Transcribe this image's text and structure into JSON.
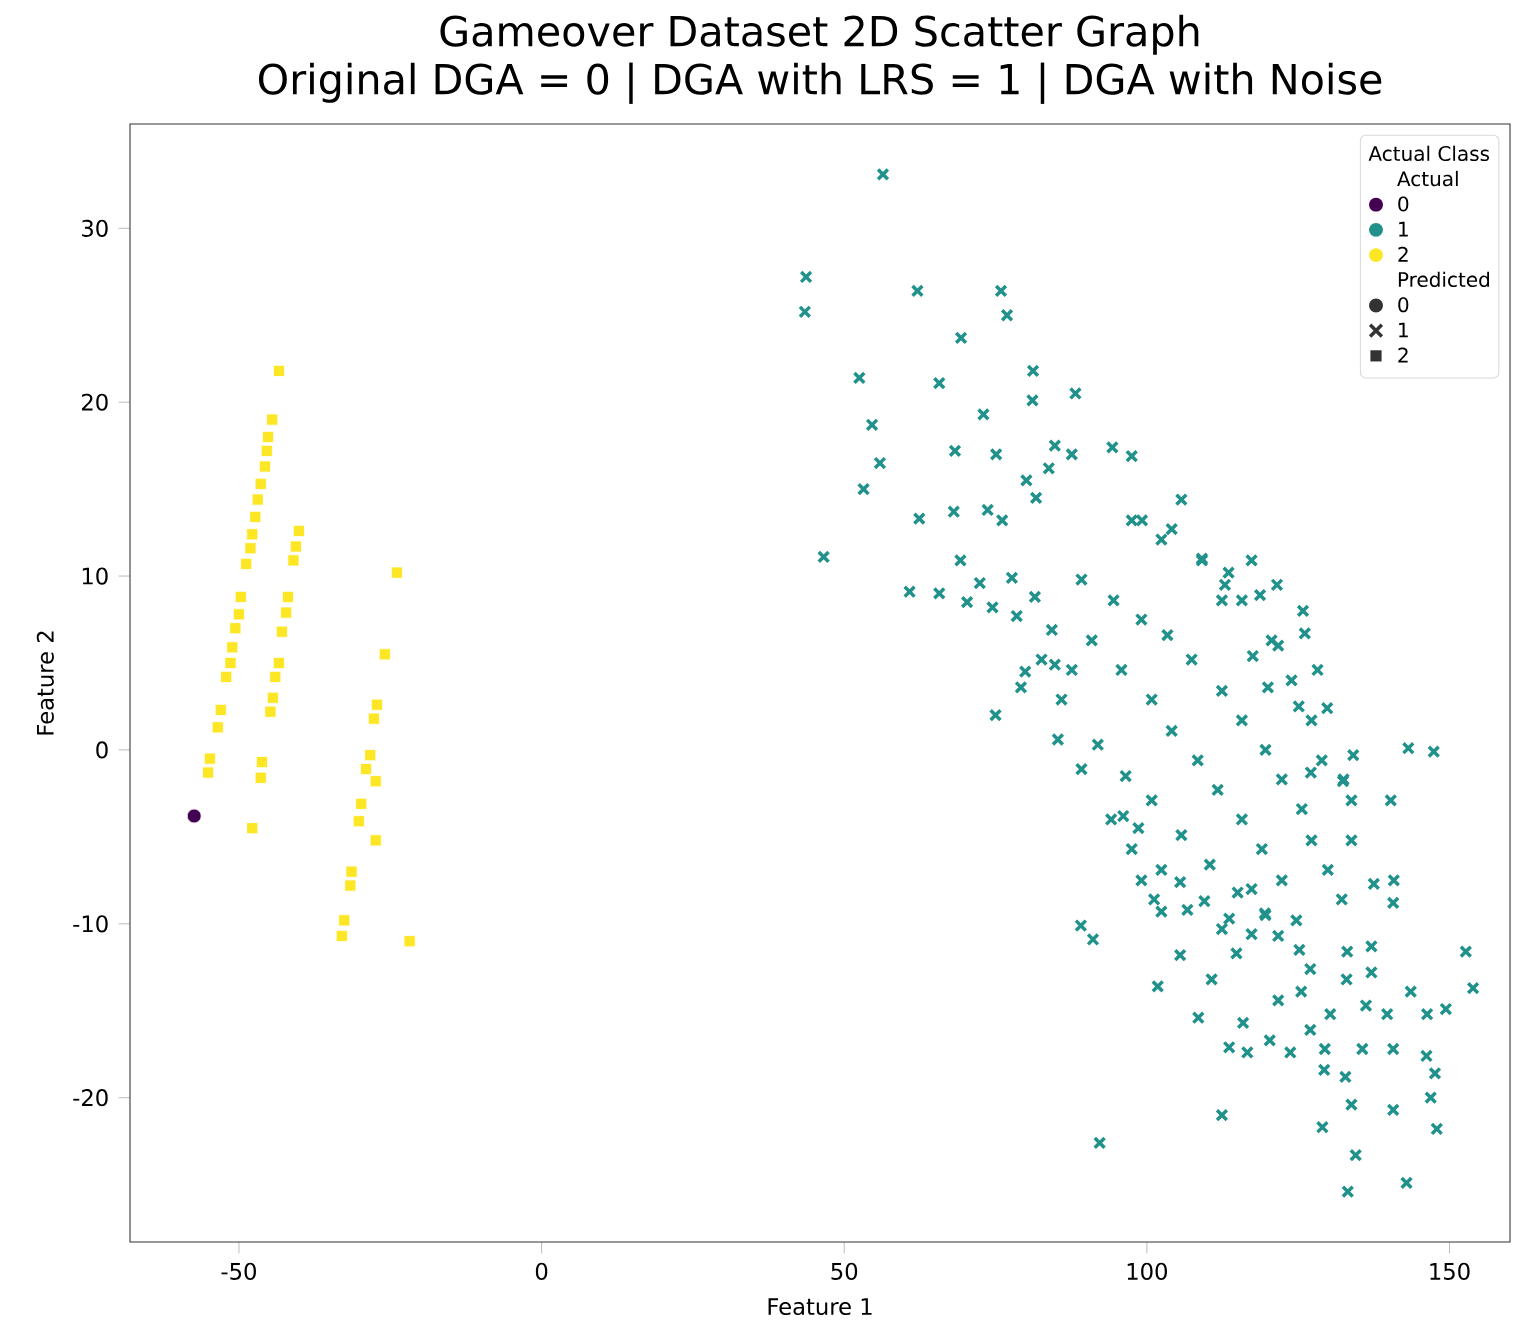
{
  "chart_data": {
    "type": "scatter",
    "title": "Gameover Dataset 2D Scatter Graph",
    "subtitle": "Original DGA = 0 | DGA with LRS = 1 | DGA with Noise",
    "xlabel": "Feature 1",
    "ylabel": "Feature 2",
    "legend_title": "Actual Class",
    "annotations": [
      "Actual",
      "Predicted",
      "0",
      "1",
      "2"
    ],
    "legend": "top right",
    "xlim": [
      -68,
      160
    ],
    "ylim": [
      -28.3,
      36
    ],
    "xticks": [
      -50,
      0,
      50,
      100,
      150
    ],
    "yticks": [
      -20,
      -10,
      0,
      10,
      20,
      30
    ],
    "series": [
      {
        "name": "0",
        "color": "#440154",
        "marker": "circle",
        "x": [
          -57.4
        ],
        "values": [
          -3.8
        ]
      },
      {
        "name": "1",
        "color": "#21918c",
        "marker": "cross",
        "x": [
          56.4,
          43.7,
          43.5,
          62.1,
          75.9,
          76.9,
          69.3,
          52.5,
          65.7,
          81.2,
          81.1,
          88.2,
          54.6,
          73.0,
          55.9,
          68.3,
          75.1,
          53.2,
          62.4,
          68.1,
          73.7,
          76.1,
          46.6,
          69.2,
          65.7,
          70.3,
          74.5,
          72.4,
          77.7,
          80.1,
          83.8,
          84.8,
          87.6,
          94.3,
          97.5,
          81.7,
          78.5,
          81.5,
          84.8,
          79.9,
          79.2,
          60.8,
          75.0,
          121.5,
          125.8,
          126.1,
          128.2,
          121.7,
          118.7,
          109.1,
          104.1,
          99.2,
          129.8,
          134.1,
          143.2,
          147.4,
          140.3,
          133.8,
          132.5,
          120.0,
          117.5,
          125.1,
          113.5,
          112.9,
          152.7,
          153.9,
          89.1,
          91.1,
          92.2,
          101.8,
          105.5,
          110.7,
          108.5,
          112.4,
          113.6,
          116.6,
          115.9,
          120.3,
          123.7,
          121.7,
          125.5,
          127.0,
          129.4,
          129.3,
          130.3,
          132.8,
          133.8,
          129.0,
          134.5,
          133.2,
          135.6,
          136.2,
          139.7,
          140.7,
          140.7,
          142.9,
          143.6,
          146.3,
          149.4,
          146.2,
          147.6,
          146.9,
          147.9,
          137.1,
          137.1,
          140.7,
          140.8,
          137.5,
          133.0,
          133.1,
          127.0,
          125.2,
          124.7,
          114.8,
          113.6,
          109.5,
          105.5,
          101.2,
          102.4,
          117.3,
          121.7,
          119.5,
          102.4,
          96.1,
          98.6,
          132.4,
          127.1,
          89.2,
          94.5,
          99.1,
          103.4,
          107.4,
          112.4,
          115.7,
          119.6,
          122.3,
          125.6,
          127.2,
          129.9,
          90.9,
          95.8,
          100.8,
          104.1,
          108.4,
          111.7,
          115.7,
          119.0,
          122.3,
          85.9,
          91.9,
          96.5,
          100.8,
          105.7,
          110.4,
          115.0,
          119.6,
          102.4,
          109.1,
          115.7,
          120.6,
          123.9,
          127.2,
          128.9,
          84.3,
          87.6,
          82.6,
          85.3,
          89.2,
          94.1,
          97.5,
          99.1,
          106.7,
          112.4,
          117.3,
          132.2,
          133.8,
          112.4,
          117.3,
          97.5,
          105.7
        ],
        "values": [
          33.1,
          27.2,
          25.2,
          26.4,
          26.4,
          25.0,
          23.7,
          21.4,
          21.1,
          21.8,
          20.1,
          20.5,
          18.7,
          19.3,
          16.5,
          17.2,
          17.0,
          15.0,
          13.3,
          13.7,
          13.8,
          13.2,
          11.1,
          10.9,
          9.0,
          8.5,
          8.2,
          9.6,
          9.9,
          15.5,
          16.2,
          17.5,
          17.0,
          17.4,
          16.9,
          14.5,
          7.7,
          8.8,
          4.9,
          4.5,
          3.6,
          9.1,
          2.0,
          9.5,
          8.0,
          6.7,
          4.6,
          6.0,
          8.9,
          11.0,
          12.7,
          13.2,
          2.4,
          -0.3,
          0.1,
          -0.1,
          -2.9,
          -2.9,
          -1.7,
          3.6,
          5.4,
          2.5,
          10.2,
          9.5,
          -11.6,
          -13.7,
          -10.1,
          -10.9,
          -22.6,
          -13.6,
          -11.8,
          -13.2,
          -15.4,
          -21.0,
          -17.1,
          -17.4,
          -15.7,
          -16.7,
          -17.4,
          -14.4,
          -13.9,
          -16.1,
          -17.2,
          -18.4,
          -15.2,
          -18.8,
          -20.4,
          -21.7,
          -23.3,
          -25.4,
          -17.2,
          -14.7,
          -15.2,
          -17.2,
          -20.7,
          -24.9,
          -13.9,
          -15.2,
          -14.9,
          -17.6,
          -18.6,
          -20.0,
          -21.8,
          -12.8,
          -11.3,
          -8.8,
          -7.5,
          -7.7,
          -13.2,
          -11.6,
          -12.6,
          -11.5,
          -9.8,
          -11.7,
          -9.7,
          -8.7,
          -7.6,
          -8.6,
          -9.3,
          -10.6,
          -10.7,
          -9.4,
          -6.9,
          -3.8,
          -4.5,
          -1.8,
          -1.3,
          9.8,
          8.6,
          7.5,
          6.6,
          5.2,
          3.4,
          1.7,
          0.0,
          -1.7,
          -3.4,
          -5.2,
          -6.9,
          6.3,
          4.6,
          2.9,
          1.1,
          -0.6,
          -2.3,
          -4.0,
          -5.7,
          -7.5,
          2.9,
          0.3,
          -1.5,
          -2.9,
          -4.9,
          -6.6,
          -8.2,
          -9.5,
          12.1,
          10.9,
          8.6,
          6.3,
          4.0,
          1.7,
          -0.6,
          6.9,
          4.6,
          5.2,
          0.6,
          -1.1,
          -4.0,
          -5.7,
          -7.5,
          -9.2,
          -10.3,
          -8.0,
          -8.6,
          -5.2,
          8.6,
          10.9,
          13.2,
          14.4
        ]
      },
      {
        "name": "2",
        "color": "#fde725",
        "marker": "square",
        "x": [
          -43.4,
          -44.5,
          -45.2,
          -45.4,
          -45.7,
          -46.4,
          -46.9,
          -47.3,
          -47.8,
          -48.1,
          -48.8,
          -49.7,
          -50.0,
          -50.6,
          -51.1,
          -51.4,
          -52.1,
          -53.0,
          -53.5,
          -54.8,
          -55.1,
          -40.1,
          -40.6,
          -41.0,
          -41.9,
          -42.2,
          -42.9,
          -43.4,
          -44.0,
          -44.4,
          -44.8,
          -46.2,
          -46.4,
          -47.8,
          -23.9,
          -25.9,
          -27.2,
          -27.7,
          -28.3,
          -29.0,
          -27.4,
          -29.8,
          -30.2,
          -27.4,
          -31.4,
          -31.6,
          -32.6,
          -33.0,
          -21.8
        ],
        "values": [
          21.8,
          19.0,
          18.0,
          17.2,
          16.3,
          15.3,
          14.4,
          13.4,
          12.4,
          11.6,
          10.7,
          8.8,
          7.8,
          7.0,
          5.9,
          5.0,
          4.2,
          2.3,
          1.3,
          -0.5,
          -1.3,
          12.6,
          11.7,
          10.9,
          8.8,
          7.9,
          6.8,
          5.0,
          4.2,
          3.0,
          2.2,
          -0.7,
          -1.6,
          -4.5,
          10.2,
          5.5,
          2.6,
          1.8,
          -0.3,
          -1.1,
          -1.8,
          -3.1,
          -4.1,
          -5.2,
          -7.0,
          -7.8,
          -9.8,
          -10.7,
          -11.0
        ]
      }
    ]
  }
}
